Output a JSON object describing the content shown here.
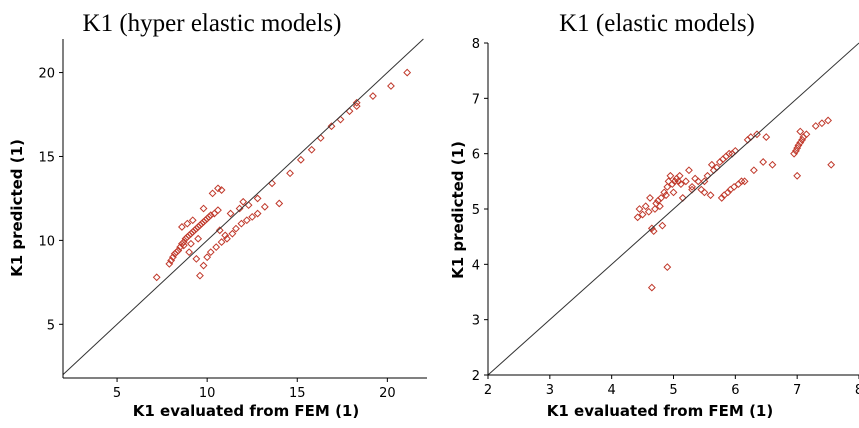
{
  "chart_data": [
    {
      "type": "scatter",
      "title": "K1 (hyper elastic models)",
      "xlabel": "K1 evaluated from FEM (1)",
      "ylabel": "K1 predicted (1)",
      "xlim": [
        2,
        22.2
      ],
      "ylim": [
        1.8,
        22
      ],
      "xticks": [
        5,
        10,
        15,
        20
      ],
      "yticks": [
        5,
        10,
        15,
        20
      ],
      "reference_line": "y = x",
      "marker": "diamond",
      "color": "#c0392b",
      "points": [
        [
          7.2,
          7.8
        ],
        [
          7.9,
          8.6
        ],
        [
          8.0,
          8.8
        ],
        [
          8.1,
          9.0
        ],
        [
          8.2,
          9.2
        ],
        [
          8.3,
          9.3
        ],
        [
          8.4,
          9.4
        ],
        [
          8.5,
          9.6
        ],
        [
          8.6,
          9.8
        ],
        [
          8.7,
          9.9
        ],
        [
          8.8,
          10.1
        ],
        [
          8.9,
          10.2
        ],
        [
          9.0,
          10.3
        ],
        [
          9.1,
          10.4
        ],
        [
          9.2,
          10.5
        ],
        [
          9.3,
          10.6
        ],
        [
          9.4,
          10.7
        ],
        [
          9.5,
          10.8
        ],
        [
          9.6,
          10.9
        ],
        [
          9.7,
          11.0
        ],
        [
          9.8,
          11.1
        ],
        [
          9.9,
          11.2
        ],
        [
          10.0,
          11.3
        ],
        [
          10.1,
          11.4
        ],
        [
          10.2,
          11.5
        ],
        [
          10.4,
          11.6
        ],
        [
          10.6,
          11.8
        ],
        [
          8.6,
          10.8
        ],
        [
          8.9,
          11.0
        ],
        [
          9.2,
          11.2
        ],
        [
          9.8,
          11.9
        ],
        [
          10.3,
          12.8
        ],
        [
          10.6,
          13.1
        ],
        [
          10.8,
          13.0
        ],
        [
          8.7,
          9.7
        ],
        [
          9.0,
          9.3
        ],
        [
          9.4,
          8.9
        ],
        [
          9.6,
          7.9
        ],
        [
          9.8,
          8.5
        ],
        [
          10.0,
          9.0
        ],
        [
          10.2,
          9.3
        ],
        [
          10.5,
          9.6
        ],
        [
          10.8,
          9.9
        ],
        [
          11.1,
          10.1
        ],
        [
          11.4,
          10.4
        ],
        [
          11.6,
          10.7
        ],
        [
          11.9,
          11.0
        ],
        [
          12.2,
          11.2
        ],
        [
          12.5,
          11.4
        ],
        [
          12.8,
          11.6
        ],
        [
          11.3,
          11.6
        ],
        [
          11.8,
          11.9
        ],
        [
          12.3,
          12.1
        ],
        [
          12.8,
          12.5
        ],
        [
          13.2,
          12.0
        ],
        [
          13.6,
          13.4
        ],
        [
          14.0,
          12.2
        ],
        [
          14.6,
          14.0
        ],
        [
          15.2,
          14.8
        ],
        [
          15.8,
          15.4
        ],
        [
          16.3,
          16.1
        ],
        [
          16.9,
          16.8
        ],
        [
          17.4,
          17.2
        ],
        [
          17.9,
          17.7
        ],
        [
          18.3,
          18.0
        ],
        [
          18.3,
          18.2
        ],
        [
          19.2,
          18.6
        ],
        [
          20.2,
          19.2
        ],
        [
          21.1,
          20.0
        ],
        [
          9.1,
          9.8
        ],
        [
          9.5,
          10.1
        ],
        [
          10.7,
          10.6
        ],
        [
          11.0,
          10.3
        ],
        [
          12.0,
          12.3
        ]
      ]
    },
    {
      "type": "scatter",
      "title": "K1 (elastic models)",
      "xlabel": "K1 evaluated from FEM (1)",
      "ylabel": "K1 predicted (1)",
      "xlim": [
        2,
        8
      ],
      "ylim": [
        2,
        8
      ],
      "xticks": [
        2,
        3,
        4,
        5,
        6,
        7,
        8
      ],
      "yticks": [
        2,
        3,
        4,
        5,
        6,
        7,
        8
      ],
      "reference_line": "y = x",
      "marker": "diamond",
      "color": "#c0392b",
      "points": [
        [
          4.42,
          4.85
        ],
        [
          4.45,
          5.0
        ],
        [
          4.5,
          4.9
        ],
        [
          4.55,
          5.05
        ],
        [
          4.6,
          4.95
        ],
        [
          4.62,
          5.2
        ],
        [
          4.65,
          4.65
        ],
        [
          4.68,
          4.6
        ],
        [
          4.7,
          5.0
        ],
        [
          4.72,
          5.1
        ],
        [
          4.75,
          5.15
        ],
        [
          4.78,
          5.05
        ],
        [
          4.8,
          5.2
        ],
        [
          4.82,
          4.7
        ],
        [
          4.85,
          5.3
        ],
        [
          4.88,
          5.25
        ],
        [
          4.9,
          5.4
        ],
        [
          4.92,
          5.5
        ],
        [
          4.95,
          5.6
        ],
        [
          4.98,
          5.45
        ],
        [
          5.0,
          5.3
        ],
        [
          5.02,
          5.5
        ],
        [
          5.05,
          5.55
        ],
        [
          5.08,
          5.5
        ],
        [
          5.1,
          5.6
        ],
        [
          5.12,
          5.45
        ],
        [
          5.15,
          5.2
        ],
        [
          5.2,
          5.5
        ],
        [
          5.25,
          5.7
        ],
        [
          5.3,
          5.4
        ],
        [
          5.35,
          5.55
        ],
        [
          5.4,
          5.5
        ],
        [
          5.45,
          5.35
        ],
        [
          5.5,
          5.3
        ],
        [
          5.55,
          5.6
        ],
        [
          5.6,
          5.25
        ],
        [
          5.62,
          5.8
        ],
        [
          5.65,
          5.7
        ],
        [
          5.7,
          5.75
        ],
        [
          5.75,
          5.85
        ],
        [
          5.78,
          5.2
        ],
        [
          5.8,
          5.9
        ],
        [
          5.82,
          5.25
        ],
        [
          5.85,
          5.95
        ],
        [
          5.88,
          5.3
        ],
        [
          5.9,
          6.0
        ],
        [
          5.92,
          5.35
        ],
        [
          5.95,
          6.0
        ],
        [
          5.98,
          5.4
        ],
        [
          6.0,
          6.05
        ],
        [
          6.05,
          5.45
        ],
        [
          6.1,
          5.5
        ],
        [
          6.15,
          5.5
        ],
        [
          6.2,
          6.25
        ],
        [
          6.25,
          6.3
        ],
        [
          6.3,
          5.7
        ],
        [
          6.35,
          6.35
        ],
        [
          6.45,
          5.85
        ],
        [
          6.5,
          6.3
        ],
        [
          6.6,
          5.8
        ],
        [
          6.95,
          6.0
        ],
        [
          6.98,
          6.05
        ],
        [
          7.0,
          6.1
        ],
        [
          7.02,
          6.15
        ],
        [
          7.05,
          6.2
        ],
        [
          7.08,
          6.25
        ],
        [
          7.1,
          6.3
        ],
        [
          7.15,
          6.35
        ],
        [
          7.0,
          5.6
        ],
        [
          7.3,
          6.5
        ],
        [
          7.4,
          6.55
        ],
        [
          7.5,
          6.6
        ],
        [
          7.55,
          5.8
        ],
        [
          7.05,
          6.4
        ],
        [
          4.65,
          3.58
        ],
        [
          4.9,
          3.95
        ],
        [
          5.5,
          5.5
        ],
        [
          5.3,
          5.35
        ]
      ]
    }
  ]
}
